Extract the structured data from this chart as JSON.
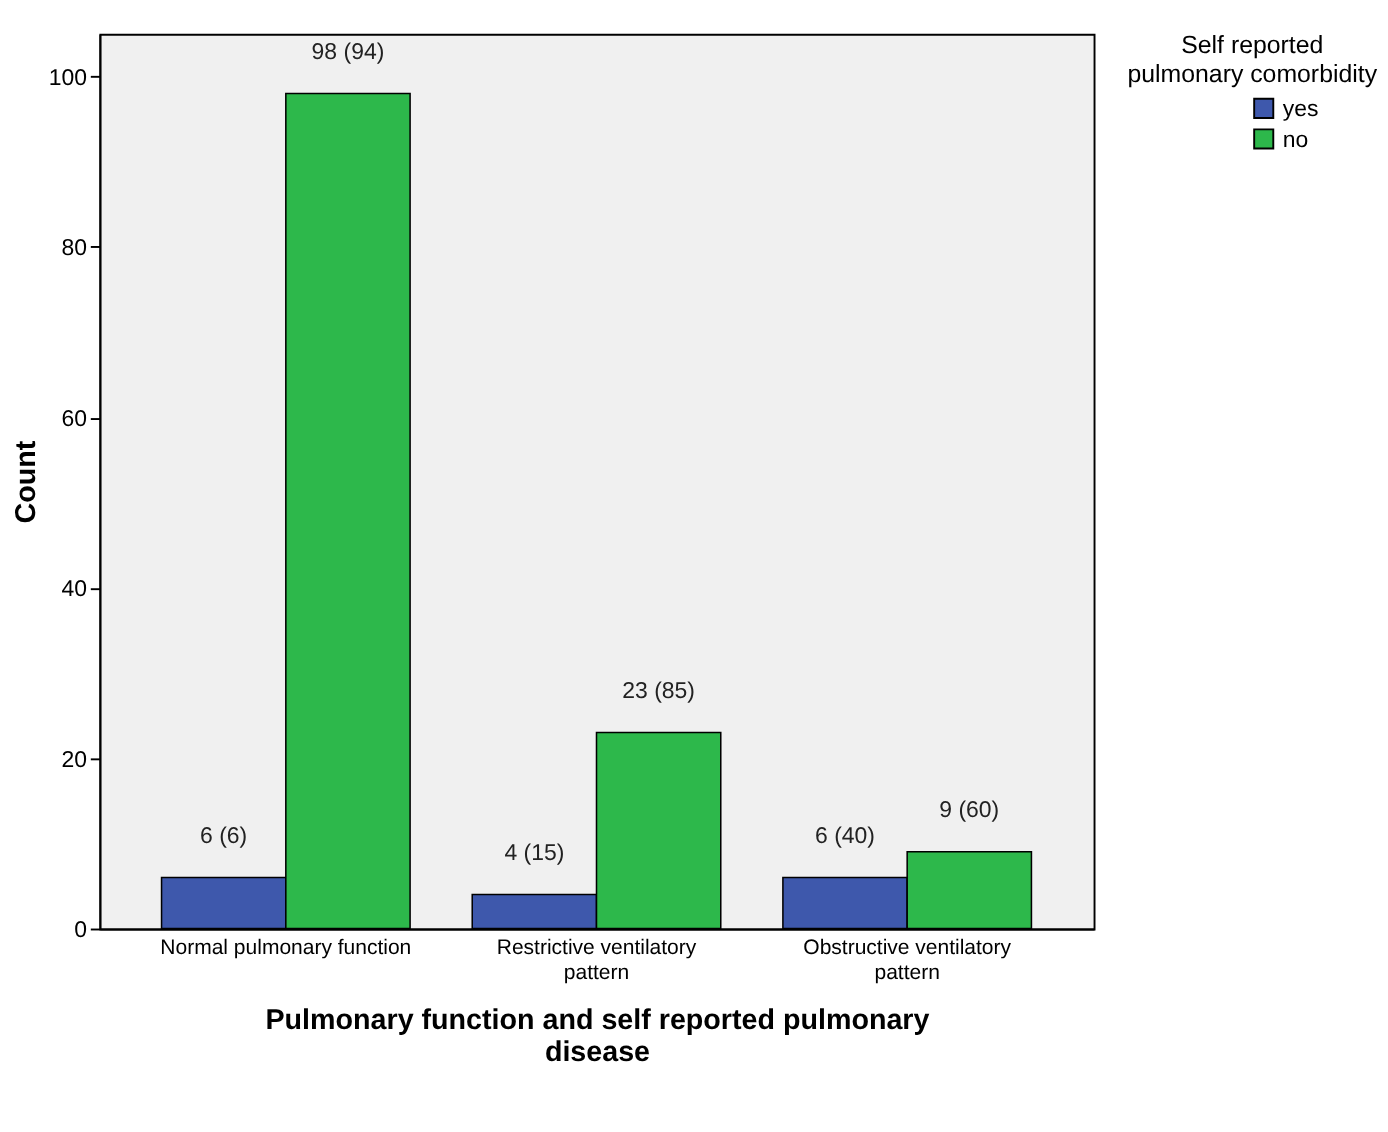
{
  "chart_data": {
    "type": "bar",
    "categories": [
      "Normal pulmonary function",
      "Restrictive ventilatory pattern",
      "Obstructive ventilatory pattern"
    ],
    "series": [
      {
        "name": "yes",
        "color": "#3e58ac",
        "values": [
          6,
          4,
          6
        ],
        "value_labels": [
          "6 (6)",
          "4 (15)",
          "6 (40)"
        ]
      },
      {
        "name": "no",
        "color": "#2db84b",
        "values": [
          98,
          23,
          9
        ],
        "value_labels": [
          "98 (94)",
          "23 (85)",
          "9 (60)"
        ]
      }
    ],
    "xlabel": "Pulmonary function and self reported pulmonary disease",
    "ylabel": "Count",
    "legend_title": "Self reported pulmonary comorbidity",
    "ylim": [
      0,
      105
    ],
    "yticks": [
      0,
      20,
      40,
      60,
      80,
      100
    ],
    "grid": false,
    "legend": "top right"
  }
}
